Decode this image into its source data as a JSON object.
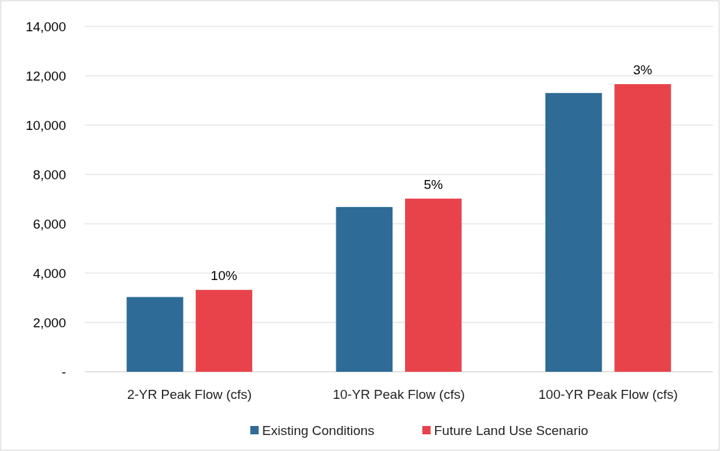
{
  "chart_data": {
    "type": "bar",
    "categories": [
      "2-YR Peak Flow (cfs)",
      "10-YR Peak Flow (cfs)",
      "100-YR Peak Flow (cfs)"
    ],
    "series": [
      {
        "name": "Existing Conditions",
        "color": "#2e6b96",
        "values": [
          3030,
          6680,
          11300
        ]
      },
      {
        "name": "Future Land Use Scenario",
        "color": "#e8434b",
        "values": [
          3320,
          7020,
          11660
        ]
      }
    ],
    "annotations": [
      "10%",
      "5%",
      "3%"
    ],
    "ylim": [
      0,
      14000
    ],
    "yticks": [
      {
        "value": 0,
        "label": "-"
      },
      {
        "value": 2000,
        "label": "2,000"
      },
      {
        "value": 4000,
        "label": "4,000"
      },
      {
        "value": 6000,
        "label": "6,000"
      },
      {
        "value": 8000,
        "label": "8,000"
      },
      {
        "value": 10000,
        "label": "10,000"
      },
      {
        "value": 12000,
        "label": "12,000"
      },
      {
        "value": 14000,
        "label": "14,000"
      }
    ],
    "grid": "y",
    "legend": "bottom"
  }
}
